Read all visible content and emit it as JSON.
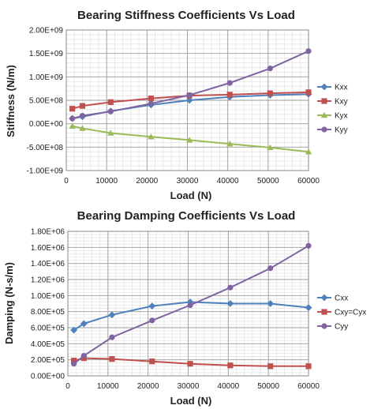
{
  "chart_data": [
    {
      "type": "line",
      "title": "Bearing Stiffness Coefficients Vs Load",
      "xlabel": "Load (N)",
      "ylabel": "Stiffness (N/m)",
      "xlim": [
        0,
        60000
      ],
      "ylim": [
        -1000000000,
        2000000000
      ],
      "x_ticks": [
        "0",
        "10000",
        "20000",
        "30000",
        "40000",
        "50000",
        "60000"
      ],
      "y_ticks": [
        "-1.00E+09",
        "-5.00E+08",
        "0.00E+00",
        "5.00E+08",
        "1.00E+09",
        "1.50E+09",
        "2.00E+09"
      ],
      "grid": true,
      "legend_position": "right",
      "series": [
        {
          "name": "Kxx",
          "color": "#4F81BD",
          "marker": "diamond",
          "x": [
            1500,
            4000,
            11000,
            21000,
            30500,
            40500,
            50500,
            60000
          ],
          "values": [
            110000000,
            150000000,
            270000000,
            400000000,
            500000000,
            570000000,
            610000000,
            630000000
          ]
        },
        {
          "name": "Kxy",
          "color": "#C0504D",
          "marker": "square",
          "x": [
            1500,
            4000,
            11000,
            21000,
            30500,
            40500,
            50500,
            60000
          ],
          "values": [
            320000000,
            380000000,
            460000000,
            540000000,
            600000000,
            620000000,
            650000000,
            670000000
          ]
        },
        {
          "name": "Kyx",
          "color": "#9BBB59",
          "marker": "triangle",
          "x": [
            1500,
            4000,
            11000,
            21000,
            30500,
            40500,
            50500,
            60000
          ],
          "values": [
            -50000000,
            -100000000,
            -200000000,
            -280000000,
            -350000000,
            -430000000,
            -510000000,
            -600000000
          ]
        },
        {
          "name": "Kyy",
          "color": "#8064A2",
          "marker": "circle",
          "x": [
            1500,
            4000,
            11000,
            21000,
            30500,
            40500,
            50500,
            60000
          ],
          "values": [
            110000000,
            170000000,
            260000000,
            430000000,
            610000000,
            870000000,
            1180000000,
            1550000000
          ]
        }
      ]
    },
    {
      "type": "line",
      "title": "Bearing Damping Coefficients Vs Load",
      "xlabel": "Load (N)",
      "ylabel": "Damping (N-s/m)",
      "xlim": [
        0,
        60000
      ],
      "ylim": [
        0,
        1800000
      ],
      "x_ticks": [
        "0",
        "10000",
        "20000",
        "30000",
        "40000",
        "50000",
        "60000"
      ],
      "y_ticks": [
        "0.00E+00",
        "2.00E+05",
        "4.00E+05",
        "6.00E+05",
        "8.00E+05",
        "1.00E+06",
        "1.20E+06",
        "1.40E+06",
        "1.60E+06",
        "1.80E+06"
      ],
      "grid": true,
      "legend_position": "right",
      "series": [
        {
          "name": "Cxx",
          "color": "#4F81BD",
          "marker": "diamond",
          "x": [
            1500,
            4000,
            11000,
            21000,
            30500,
            40500,
            50500,
            60000
          ],
          "values": [
            570000,
            650000,
            760000,
            870000,
            920000,
            900000,
            900000,
            850000
          ]
        },
        {
          "name": "Cxy=Cyx",
          "color": "#C0504D",
          "marker": "square",
          "x": [
            1500,
            4000,
            11000,
            21000,
            30500,
            40500,
            50500,
            60000
          ],
          "values": [
            190000,
            220000,
            210000,
            180000,
            150000,
            130000,
            120000,
            120000
          ]
        },
        {
          "name": "Cyy",
          "color": "#8064A2",
          "marker": "circle",
          "x": [
            1500,
            4000,
            11000,
            21000,
            30500,
            40500,
            50500,
            60000
          ],
          "values": [
            150000,
            250000,
            480000,
            690000,
            880000,
            1100000,
            1340000,
            1620000
          ]
        }
      ]
    }
  ]
}
